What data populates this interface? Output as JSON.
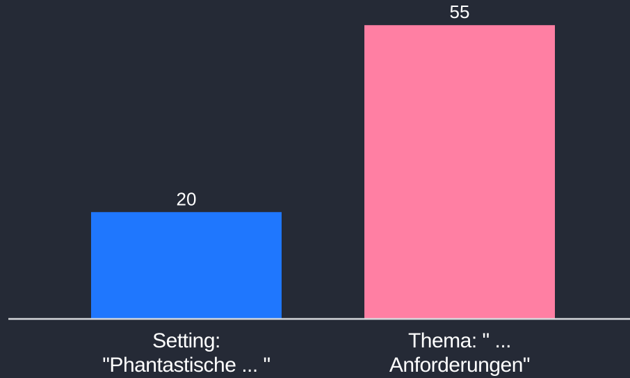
{
  "chart_data": {
    "type": "bar",
    "title": "",
    "xlabel": "",
    "ylabel": "",
    "categories": [
      [
        "Setting:",
        "\"Phantastische ... \""
      ],
      [
        "Thema: \" ...",
        "Anforderungen\""
      ]
    ],
    "values": [
      20,
      55
    ],
    "value_labels": [
      "20",
      "55"
    ],
    "colors": [
      "#1f77fe",
      "#ff7fa3"
    ],
    "ylim": [
      0,
      57.5
    ],
    "grid": false,
    "legend": "none"
  }
}
